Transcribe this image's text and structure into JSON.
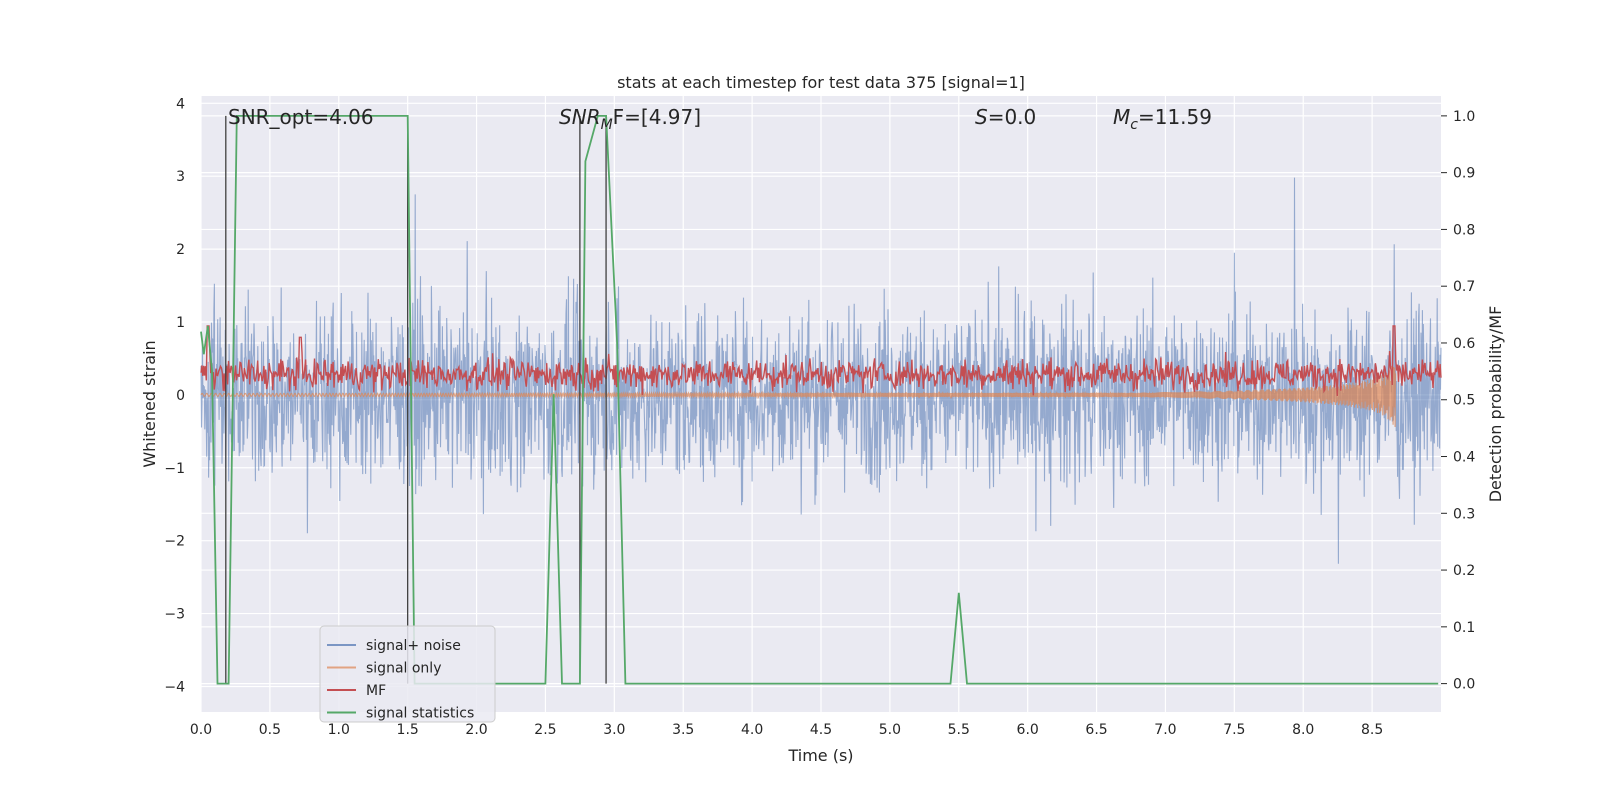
{
  "chart_data": {
    "type": "line",
    "title": "stats at each timestep for test data 375 [signal=1]",
    "xlabel": "Time (s)",
    "ylabel_left": "Whitened strain",
    "ylabel_right": "Detection probability/MF",
    "xlim": [
      0.0,
      9.0
    ],
    "ylim_left": [
      -4.35,
      4.1
    ],
    "ylim_right": [
      -0.05,
      1.035
    ],
    "x_ticks": [
      "0.0",
      "0.5",
      "1.0",
      "1.5",
      "2.0",
      "2.5",
      "3.0",
      "3.5",
      "4.0",
      "4.5",
      "5.0",
      "5.5",
      "6.0",
      "6.5",
      "7.0",
      "7.5",
      "8.0",
      "8.5"
    ],
    "y_left_ticks": [
      "4",
      "3",
      "2",
      "1",
      "0",
      "−1",
      "−2",
      "−3",
      "−4"
    ],
    "y_right_ticks": [
      "1.0",
      "0.9",
      "0.8",
      "0.7",
      "0.6",
      "0.5",
      "0.4",
      "0.3",
      "0.2",
      "0.1",
      "0.0"
    ],
    "grid": true,
    "legend_position": "lower-left",
    "annotations": {
      "snr_opt": "SNR_opt=4.06",
      "snr_mf_base": "SNR",
      "snr_mf_sub": "M",
      "snr_mf_rest": "F=[4.97]",
      "s_sym": "S",
      "s_val": "=0.0",
      "mc_sym": "M",
      "mc_sub": "c",
      "mc_val": "=11.59"
    },
    "series": [
      {
        "name": "signal+ noise",
        "axis": "left",
        "color": "#4c72b0",
        "description_of_values": "noise-like whitened strain, amplitude roughly ±2 with spikes to about ±3.5",
        "amplitude_range": [
          -4.0,
          3.8
        ]
      },
      {
        "name": "signal only",
        "axis": "left",
        "color": "#dd8452",
        "envelope": {
          "x": [
            0.0,
            6.8,
            7.5,
            8.0,
            8.3,
            8.5,
            8.6,
            8.65,
            8.67
          ],
          "amp": [
            0.02,
            0.03,
            0.06,
            0.1,
            0.15,
            0.22,
            0.3,
            0.42,
            0.45
          ]
        }
      },
      {
        "name": "MF",
        "axis": "right",
        "color": "#c44e52",
        "baseline": 0.545,
        "spread": 0.035,
        "spikes": [
          {
            "x": 0.05,
            "y": 0.63
          },
          {
            "x": 0.72,
            "y": 0.61
          },
          {
            "x": 8.66,
            "y": 0.63
          }
        ]
      },
      {
        "name": "signal statistics",
        "axis": "right",
        "color": "#55a868",
        "x": [
          0.0,
          0.02,
          0.05,
          0.08,
          0.12,
          0.18,
          0.2,
          0.26,
          1.5,
          1.55,
          2.5,
          2.56,
          2.62,
          2.75,
          2.79,
          2.88,
          2.94,
          3.02,
          3.08,
          5.44,
          5.5,
          5.56,
          8.98
        ],
        "y": [
          0.62,
          0.58,
          0.63,
          0.55,
          0.0,
          0.0,
          0.0,
          1.0,
          1.0,
          0.0,
          0.0,
          0.51,
          0.0,
          0.0,
          0.92,
          1.0,
          1.0,
          0.6,
          0.0,
          0.0,
          0.16,
          0.0,
          0.0
        ]
      }
    ],
    "vertical_markers": {
      "axis": "right",
      "color": "#404040",
      "x": [
        0.18,
        1.5,
        2.75,
        2.94
      ],
      "y_range": [
        0.0,
        1.0
      ]
    }
  }
}
